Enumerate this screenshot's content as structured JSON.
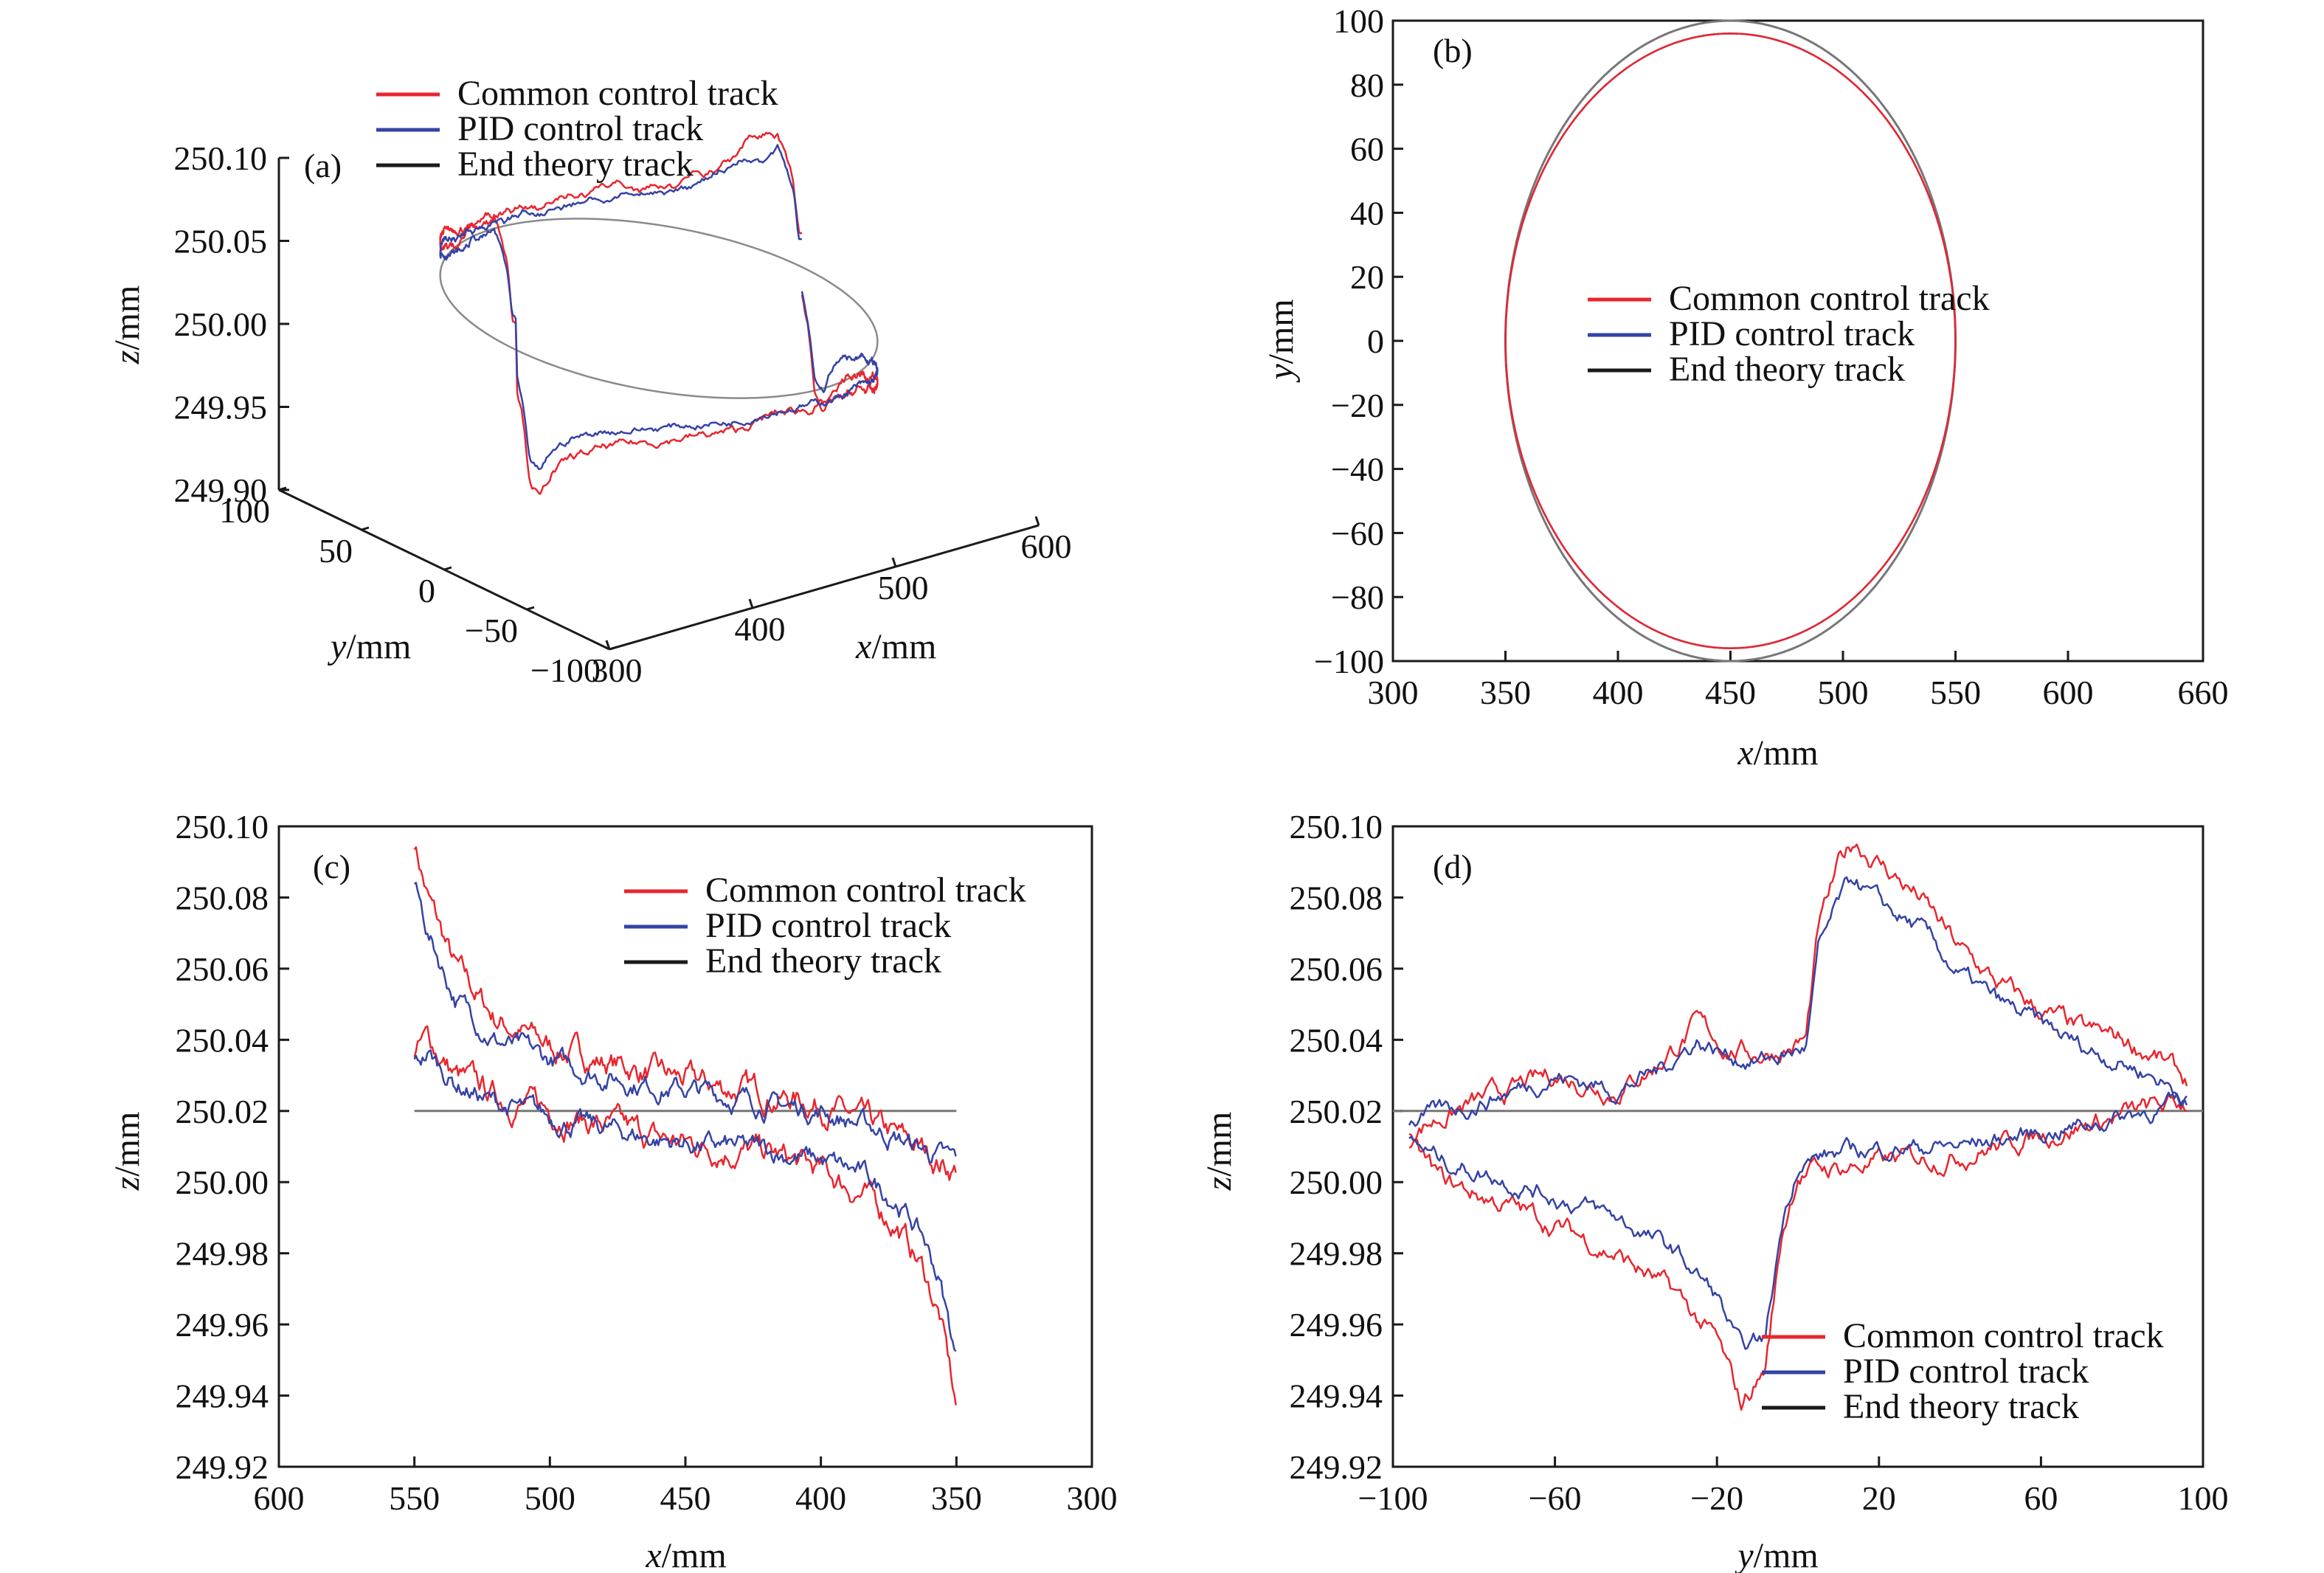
{
  "figure": {
    "panel_labels": [
      "(a)",
      "(b)",
      "(c)",
      "(d)"
    ]
  },
  "legend": {
    "entries": [
      {
        "label": "Common control track",
        "color": "#e8262e"
      },
      {
        "label": "PID control track",
        "color": "#3543a4"
      },
      {
        "label": "End theory track",
        "color": "#1a1a1a"
      }
    ]
  },
  "colors": {
    "common": "#e8262e",
    "pid": "#3543a4",
    "theory": "#1a1a1a",
    "theory_line": "#777777",
    "axis": "#1a1a1a"
  },
  "chart_data": [
    {
      "panel": "(a)",
      "type": "line",
      "projection": "3d",
      "xlabel_var": "x",
      "xlabel_unit": "/mm",
      "ylabel_var": "y",
      "ylabel_unit": "/mm",
      "zlabel_var": "z",
      "zlabel_unit": "/mm",
      "xlim": [
        300,
        600
      ],
      "ylim": [
        -100,
        100
      ],
      "zlim": [
        249.9,
        250.1
      ],
      "x_ticks": [
        "300",
        "400",
        "500",
        "600"
      ],
      "y_ticks": [
        "100",
        "50",
        "0",
        "−50",
        "−100"
      ],
      "z_ticks": [
        "250.10",
        "250.05",
        "250.00",
        "249.95",
        "249.90"
      ],
      "series": [
        {
          "name": "Common control track",
          "color_key": "common"
        },
        {
          "name": "PID control track",
          "color_key": "pid"
        },
        {
          "name": "End theory track",
          "color_key": "theory"
        }
      ],
      "circle": {
        "cx": 450,
        "cy": 0,
        "r": 100,
        "z": 250.02
      }
    },
    {
      "panel": "(b)",
      "type": "line",
      "xlabel_var": "x",
      "xlabel_unit": "/mm",
      "ylabel_var": "y",
      "ylabel_unit": "/mm",
      "xlim": [
        300,
        660
      ],
      "ylim": [
        -100,
        100
      ],
      "x_ticks": [
        300,
        350,
        400,
        450,
        500,
        550,
        600,
        660
      ],
      "y_ticks": [
        100,
        80,
        60,
        40,
        20,
        0,
        -20,
        -40,
        -60,
        -80,
        -100
      ],
      "series": [
        {
          "name": "Common control track",
          "color_key": "common",
          "center": [
            450,
            0
          ],
          "rx": 100,
          "ry": 96
        },
        {
          "name": "PID control track",
          "color_key": "pid",
          "center": [
            450,
            0
          ],
          "rx": 100,
          "ry": 96
        },
        {
          "name": "End theory track",
          "color_key": "theory_line",
          "center": [
            450,
            0
          ],
          "rx": 100,
          "ry": 100
        }
      ]
    },
    {
      "panel": "(c)",
      "type": "line",
      "xlabel_var": "x",
      "xlabel_unit": "/mm",
      "ylabel_var": "z",
      "ylabel_unit": "/mm",
      "xlim": [
        600,
        300
      ],
      "ylim": [
        249.92,
        250.1
      ],
      "x_ticks": [
        600,
        550,
        500,
        450,
        400,
        350,
        300
      ],
      "y_ticks": [
        "250.10",
        "250.08",
        "250.06",
        "250.04",
        "250.02",
        "250.00",
        "249.98",
        "249.96",
        "249.94",
        "249.92"
      ],
      "theory_z": 250.02,
      "series": [
        {
          "name": "Common control track",
          "color_key": "common",
          "upper": [
            [
              550,
              250.096
            ],
            [
              545,
              250.08
            ],
            [
              535,
              250.06
            ],
            [
              520,
              250.046
            ],
            [
              500,
              250.038
            ],
            [
              480,
              250.034
            ],
            [
              460,
              250.03
            ],
            [
              440,
              250.027
            ],
            [
              420,
              250.025
            ],
            [
              400,
              250.022
            ],
            [
              380,
              250.015
            ],
            [
              365,
              250.01
            ],
            [
              352,
              250.004
            ]
          ],
          "lower": [
            [
              550,
              250.036
            ],
            [
              545,
              250.04
            ],
            [
              535,
              250.03
            ],
            [
              520,
              250.024
            ],
            [
              500,
              250.02
            ],
            [
              480,
              250.016
            ],
            [
              460,
              250.012
            ],
            [
              440,
              250.01
            ],
            [
              420,
              250.008
            ],
            [
              400,
              250.003
            ],
            [
              385,
              249.997
            ],
            [
              372,
              249.988
            ],
            [
              362,
              249.975
            ],
            [
              356,
              249.962
            ],
            [
              350,
              249.936
            ]
          ]
        },
        {
          "name": "PID control track",
          "color_key": "pid",
          "upper": [
            [
              550,
              250.084
            ],
            [
              545,
              250.07
            ],
            [
              535,
              250.052
            ],
            [
              520,
              250.04
            ],
            [
              500,
              250.034
            ],
            [
              480,
              250.03
            ],
            [
              460,
              250.027
            ],
            [
              440,
              250.025
            ],
            [
              420,
              250.022
            ],
            [
              400,
              250.02
            ],
            [
              380,
              250.015
            ],
            [
              365,
              250.01
            ],
            [
              352,
              250.006
            ]
          ],
          "lower": [
            [
              550,
              250.033
            ],
            [
              545,
              250.036
            ],
            [
              535,
              250.028
            ],
            [
              520,
              250.022
            ],
            [
              500,
              250.018
            ],
            [
              480,
              250.015
            ],
            [
              460,
              250.012
            ],
            [
              440,
              250.01
            ],
            [
              420,
              250.009
            ],
            [
              400,
              250.006
            ],
            [
              385,
              250.002
            ],
            [
              372,
              249.995
            ],
            [
              362,
              249.984
            ],
            [
              356,
              249.972
            ],
            [
              350,
              249.95
            ]
          ]
        },
        {
          "name": "End theory track",
          "color_key": "theory_line",
          "x_range": [
            550,
            350
          ]
        }
      ]
    },
    {
      "panel": "(d)",
      "type": "line",
      "xlabel_var": "y",
      "xlabel_unit": "/mm",
      "ylabel_var": "z",
      "ylabel_unit": "/mm",
      "xlim": [
        -100,
        100
      ],
      "ylim": [
        249.92,
        250.1
      ],
      "x_ticks": [
        "−100",
        "−60",
        "−20",
        "20",
        "60",
        "100"
      ],
      "x_tick_values": [
        -100,
        -60,
        -20,
        20,
        60,
        100
      ],
      "y_ticks": [
        "250.10",
        "250.08",
        "250.06",
        "250.04",
        "250.02",
        "250.00",
        "249.98",
        "249.96",
        "249.94",
        "249.92"
      ],
      "theory_z": 250.02,
      "series": [
        {
          "name": "Common control track",
          "color_key": "common",
          "upper": [
            [
              -96,
              250.015
            ],
            [
              -80,
              250.022
            ],
            [
              -60,
              250.03
            ],
            [
              -45,
              250.026
            ],
            [
              -35,
              250.033
            ],
            [
              -25,
              250.044
            ],
            [
              -18,
              250.038
            ],
            [
              -10,
              250.036
            ],
            [
              -2,
              250.038
            ],
            [
              2,
              250.04
            ],
            [
              5,
              250.07
            ],
            [
              10,
              250.088
            ],
            [
              14,
              250.096
            ],
            [
              20,
              250.09
            ],
            [
              30,
              250.08
            ],
            [
              40,
              250.065
            ],
            [
              50,
              250.055
            ],
            [
              60,
              250.048
            ],
            [
              70,
              250.042
            ],
            [
              80,
              250.04
            ],
            [
              88,
              250.036
            ],
            [
              96,
              250.028
            ]
          ],
          "lower": [
            [
              -96,
              250.01
            ],
            [
              -88,
              250.0
            ],
            [
              -75,
              249.995
            ],
            [
              -60,
              249.988
            ],
            [
              -45,
              249.98
            ],
            [
              -30,
              249.968
            ],
            [
              -20,
              249.955
            ],
            [
              -14,
              249.937
            ],
            [
              -8,
              249.948
            ],
            [
              -4,
              249.985
            ],
            [
              0,
              250.003
            ],
            [
              10,
              250.004
            ],
            [
              25,
              250.006
            ],
            [
              40,
              250.008
            ],
            [
              55,
              250.012
            ],
            [
              70,
              250.016
            ],
            [
              85,
              250.02
            ],
            [
              96,
              250.022
            ]
          ]
        },
        {
          "name": "PID control track",
          "color_key": "pid",
          "upper": [
            [
              -96,
              250.017
            ],
            [
              -80,
              250.022
            ],
            [
              -60,
              250.03
            ],
            [
              -45,
              250.026
            ],
            [
              -35,
              250.031
            ],
            [
              -25,
              250.04
            ],
            [
              -18,
              250.036
            ],
            [
              -10,
              250.034
            ],
            [
              -2,
              250.036
            ],
            [
              2,
              250.038
            ],
            [
              5,
              250.064
            ],
            [
              10,
              250.078
            ],
            [
              14,
              250.085
            ],
            [
              20,
              250.078
            ],
            [
              30,
              250.071
            ],
            [
              40,
              250.058
            ],
            [
              50,
              250.05
            ],
            [
              60,
              250.044
            ],
            [
              70,
              250.038
            ],
            [
              80,
              250.034
            ],
            [
              88,
              250.03
            ],
            [
              96,
              250.024
            ]
          ],
          "lower": [
            [
              -96,
              250.012
            ],
            [
              -88,
              250.006
            ],
            [
              -75,
              250.002
            ],
            [
              -60,
              249.996
            ],
            [
              -45,
              249.99
            ],
            [
              -30,
              249.98
            ],
            [
              -20,
              249.968
            ],
            [
              -14,
              249.952
            ],
            [
              -8,
              249.956
            ],
            [
              -4,
              249.988
            ],
            [
              0,
              250.006
            ],
            [
              10,
              250.008
            ],
            [
              25,
              250.01
            ],
            [
              40,
              250.01
            ],
            [
              55,
              250.013
            ],
            [
              70,
              250.016
            ],
            [
              85,
              250.02
            ],
            [
              96,
              250.022
            ]
          ]
        },
        {
          "name": "End theory track",
          "color_key": "theory_line",
          "x_range": [
            -100,
            100
          ]
        }
      ]
    }
  ]
}
